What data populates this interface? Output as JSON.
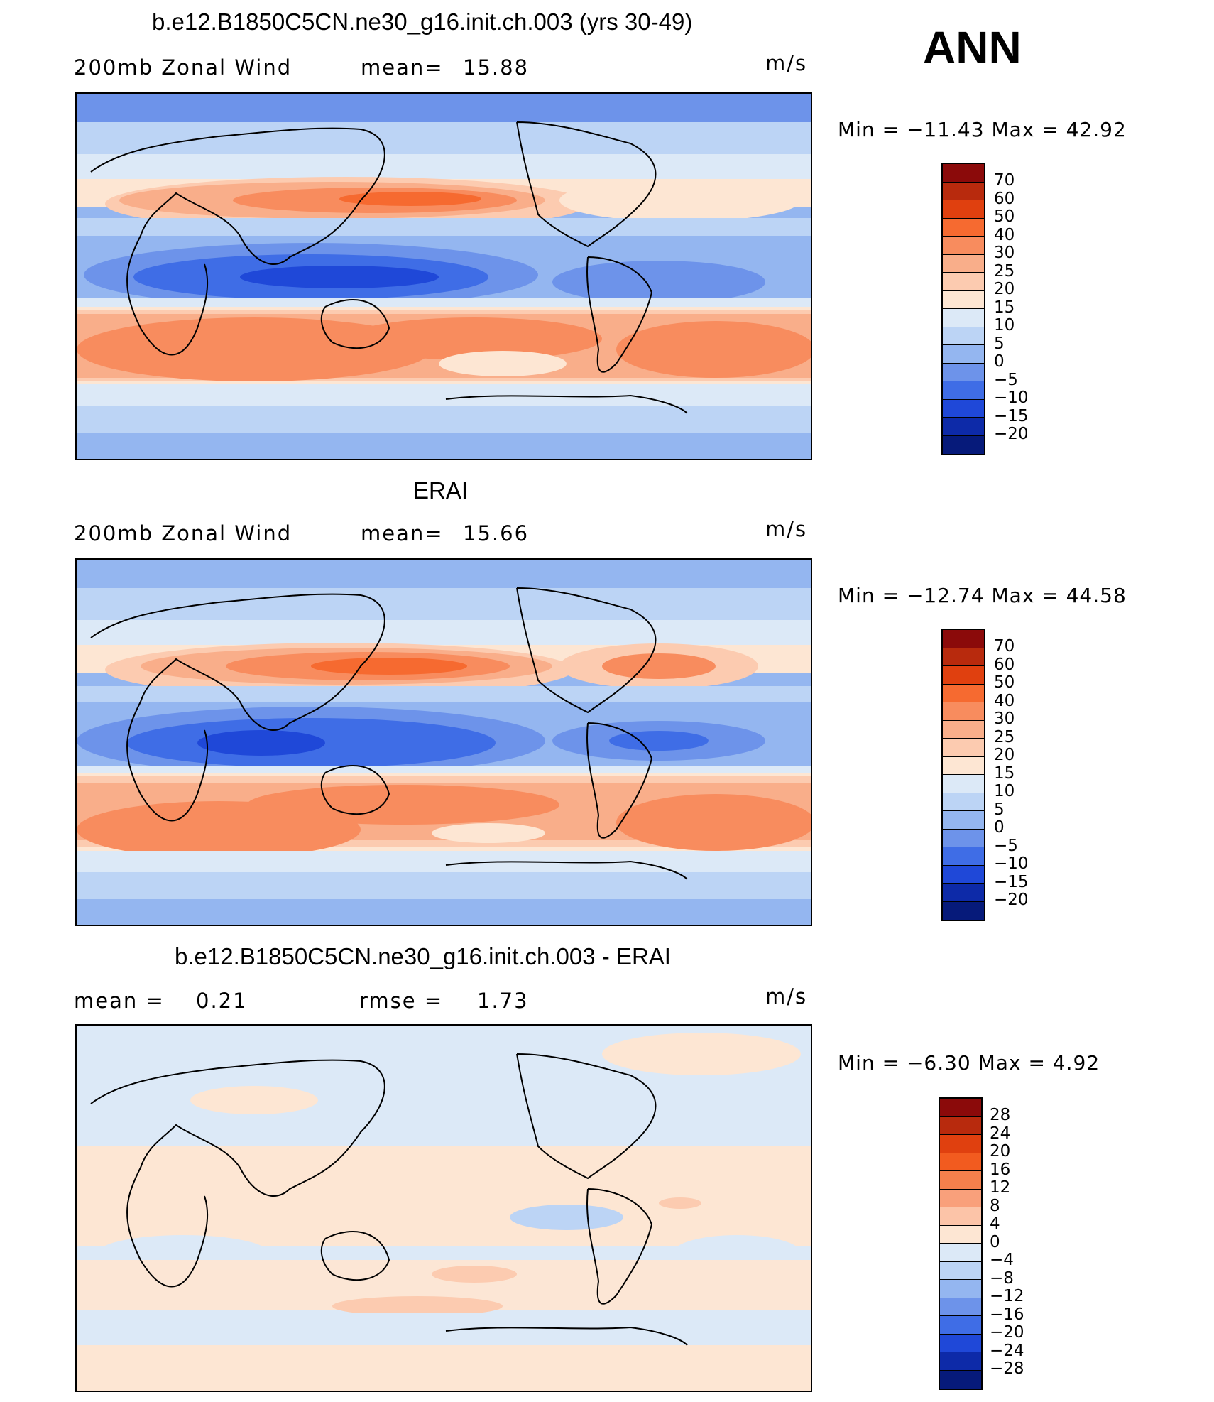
{
  "season": "ANN",
  "unit": "m/s",
  "panels": [
    {
      "id": "model",
      "title": "b.e12.B1850C5CN.ne30_g16.init.ch.003 (yrs 30-49)",
      "left_label": "200mb Zonal Wind",
      "mean_label": "mean=",
      "mean_value": "15.88",
      "minmax": "Min = −11.43 Max =   42.92",
      "colorbar": {
        "levels": [
          "70",
          "60",
          "50",
          "40",
          "30",
          "25",
          "20",
          "15",
          "10",
          "5",
          "0",
          "−5",
          "−10",
          "−15",
          "−20"
        ],
        "colors": [
          "#8b0a0a",
          "#b82a0d",
          "#e0400f",
          "#f66a30",
          "#f88c5e",
          "#f9ae8a",
          "#fccbb0",
          "#fde6d3",
          "#dce9f7",
          "#bcd4f5",
          "#94b6f0",
          "#6d93ea",
          "#3f6de6",
          "#1f48d8",
          "#0d2aa8",
          "#061a7a"
        ]
      }
    },
    {
      "id": "obs",
      "title": "ERAI",
      "left_label": "200mb Zonal Wind",
      "mean_label": "mean=",
      "mean_value": "15.66",
      "minmax": "Min = −12.74 Max =   44.58",
      "colorbar": {
        "levels": [
          "70",
          "60",
          "50",
          "40",
          "30",
          "25",
          "20",
          "15",
          "10",
          "5",
          "0",
          "−5",
          "−10",
          "−15",
          "−20"
        ],
        "colors": [
          "#8b0a0a",
          "#b82a0d",
          "#e0400f",
          "#f66a30",
          "#f88c5e",
          "#f9ae8a",
          "#fccbb0",
          "#fde6d3",
          "#dce9f7",
          "#bcd4f5",
          "#94b6f0",
          "#6d93ea",
          "#3f6de6",
          "#1f48d8",
          "#0d2aa8",
          "#061a7a"
        ]
      }
    },
    {
      "id": "diff",
      "title": "b.e12.B1850C5CN.ne30_g16.init.ch.003 - ERAI",
      "left_label": "mean =",
      "mean_label": "rmse =",
      "left_value": "0.21",
      "mean_value": "1.73",
      "minmax": "Min =   −6.30 Max =    4.92",
      "colorbar": {
        "levels": [
          "28",
          "24",
          "20",
          "16",
          "12",
          "8",
          "4",
          "0",
          "−4",
          "−8",
          "−12",
          "−16",
          "−20",
          "−24",
          "−28"
        ],
        "colors": [
          "#8b0a0a",
          "#b82a0d",
          "#e0400f",
          "#f25b1f",
          "#f6804c",
          "#f9a07b",
          "#fcc4a8",
          "#fde6d3",
          "#dce9f7",
          "#bcd4f5",
          "#94b6f0",
          "#6d93ea",
          "#3f6de6",
          "#1f48d8",
          "#0d2aa8",
          "#061a7a"
        ]
      }
    }
  ]
}
